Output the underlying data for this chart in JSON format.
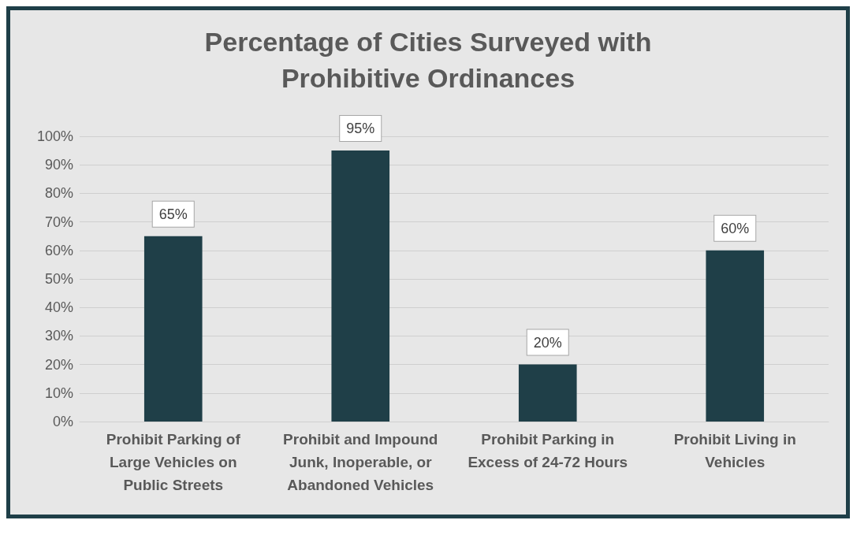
{
  "chart_data": {
    "type": "bar",
    "title": "Percentage of Cities Surveyed with\nProhibitive Ordinances",
    "categories": [
      "Prohibit Parking of\nLarge Vehicles on\nPublic Streets",
      "Prohibit and Impound\nJunk, Inoperable, or\nAbandoned Vehicles",
      "Prohibit Parking in\nExcess of 24-72 Hours",
      "Prohibit Living in\nVehicles"
    ],
    "values": [
      65,
      95,
      20,
      60
    ],
    "value_labels": [
      "65%",
      "95%",
      "20%",
      "60%"
    ],
    "color": "#1f3f48",
    "ylim": [
      0,
      100
    ],
    "yticks": [
      {
        "value": 0,
        "label": "0%"
      },
      {
        "value": 10,
        "label": "10%"
      },
      {
        "value": 20,
        "label": "20%"
      },
      {
        "value": 30,
        "label": "30%"
      },
      {
        "value": 40,
        "label": "40%"
      },
      {
        "value": 50,
        "label": "50%"
      },
      {
        "value": 60,
        "label": "60%"
      },
      {
        "value": 70,
        "label": "70%"
      },
      {
        "value": 80,
        "label": "80%"
      },
      {
        "value": 90,
        "label": "90%"
      },
      {
        "value": 100,
        "label": "100%"
      }
    ],
    "grid": "y"
  }
}
